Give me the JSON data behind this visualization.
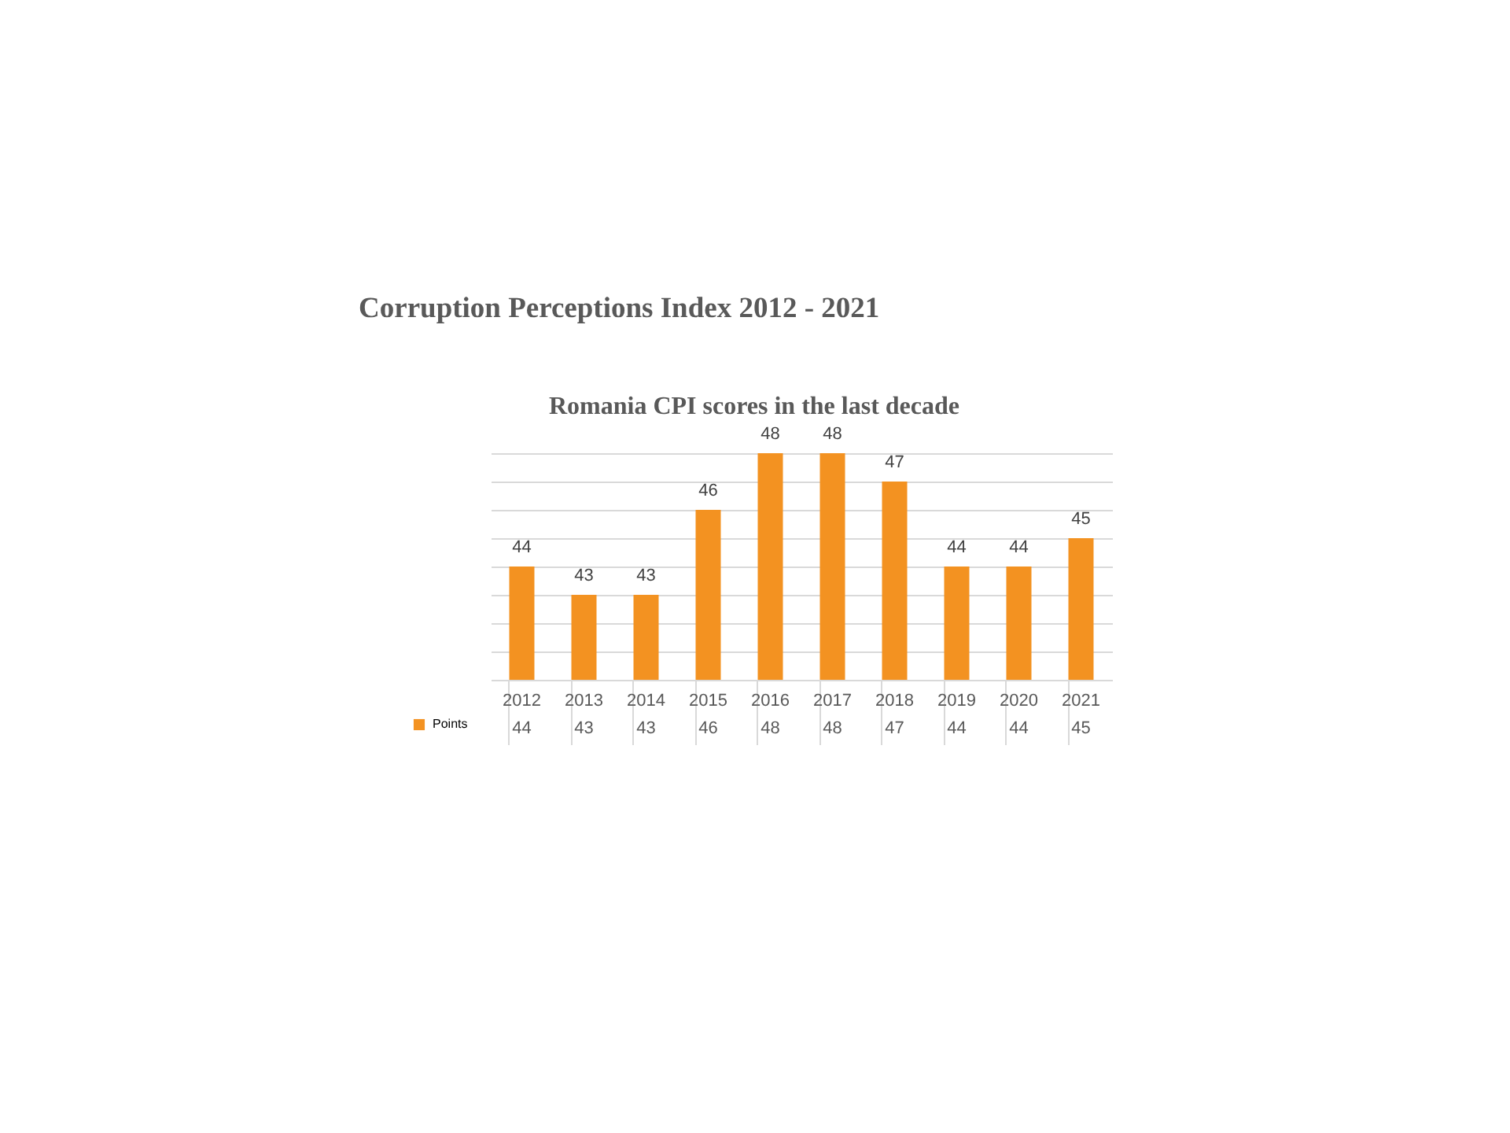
{
  "chart_data": {
    "type": "bar",
    "title": "Corruption Perceptions Index 2012 - 2021",
    "subtitle": "Romania CPI scores in the last decade",
    "categories": [
      "2012",
      "2013",
      "2014",
      "2015",
      "2016",
      "2017",
      "2018",
      "2019",
      "2020",
      "2021"
    ],
    "series": [
      {
        "name": "Points",
        "color": "#f39221",
        "values": [
          44,
          43,
          43,
          46,
          48,
          48,
          47,
          44,
          44,
          45
        ]
      }
    ],
    "ylim": [
      40,
      48
    ],
    "yticks": [
      {
        "value": 40,
        "label": null
      },
      {
        "value": 41,
        "label": null
      },
      {
        "value": 42,
        "label": null
      },
      {
        "value": 43,
        "label": null
      },
      {
        "value": 44,
        "label": null
      },
      {
        "value": 45,
        "label": null
      },
      {
        "value": 46,
        "label": null
      },
      {
        "value": 47,
        "label": null
      },
      {
        "value": 48,
        "label": null
      }
    ],
    "annotations": [
      "44",
      "43",
      "43",
      "46",
      "48",
      "48",
      "47",
      "44",
      "44",
      "45"
    ],
    "grid": "y",
    "legend": "bottom left",
    "tick_labels": "x",
    "data_labels": true
  }
}
